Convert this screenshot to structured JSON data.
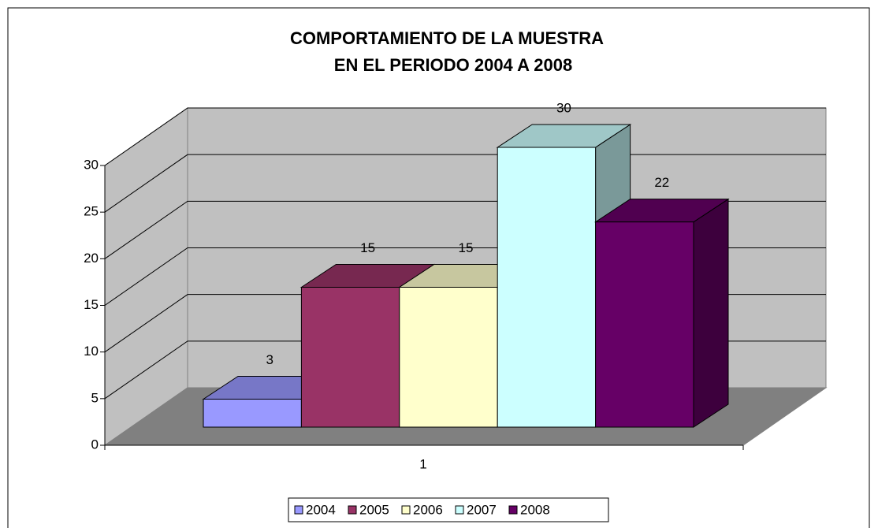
{
  "chart_data": {
    "type": "bar3d",
    "title": [
      "COMPORTAMIENTO DE LA MUESTRA",
      "EN EL PERIODO 2004 A  2008"
    ],
    "categories": [
      "1"
    ],
    "series": [
      {
        "name": "2004",
        "color": "#9999ff",
        "values": [
          3
        ]
      },
      {
        "name": "2005",
        "color": "#993366",
        "values": [
          15
        ]
      },
      {
        "name": "2006",
        "color": "#ffffcc",
        "values": [
          15
        ]
      },
      {
        "name": "2007",
        "color": "#ccffff",
        "values": [
          30
        ]
      },
      {
        "name": "2008",
        "color": "#660066",
        "values": [
          22
        ]
      }
    ],
    "ylim": [
      0,
      30
    ],
    "yticks": [
      0,
      5,
      10,
      15,
      20,
      25,
      30
    ],
    "grid": true,
    "legend": "bottom"
  }
}
